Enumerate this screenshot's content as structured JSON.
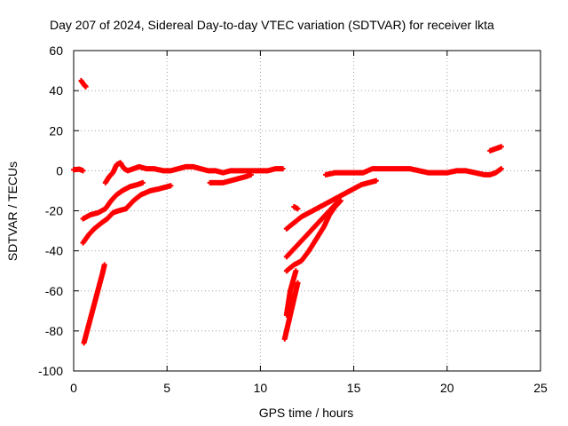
{
  "chart_data": {
    "type": "scatter",
    "title": "Day 207 of 2024, Sidereal Day-to-day VTEC variation (SDTVAR) for receiver lkta",
    "xlabel": "GPS time / hours",
    "ylabel": "SDTVAR / TECUs",
    "xlim": [
      0,
      25
    ],
    "ylim": [
      -100,
      60
    ],
    "xticks": [
      0,
      5,
      10,
      15,
      20,
      25
    ],
    "yticks": [
      -100,
      -80,
      -60,
      -40,
      -20,
      0,
      20,
      40,
      60
    ],
    "grid": true,
    "marker_color": "#ff0000",
    "series": [
      {
        "values": [
          [
            0.0,
            0.5
          ],
          [
            0.3,
            0.8
          ],
          [
            0.5,
            0.0
          ]
        ]
      },
      {
        "values": [
          [
            0.4,
            45
          ],
          [
            0.55,
            43
          ],
          [
            0.65,
            42
          ]
        ]
      },
      {
        "values": [
          [
            0.5,
            -24
          ],
          [
            0.9,
            -22
          ],
          [
            1.3,
            -21
          ],
          [
            1.7,
            -19
          ],
          [
            2.0,
            -15
          ],
          [
            2.3,
            -12
          ],
          [
            2.6,
            -10
          ],
          [
            3.0,
            -8
          ],
          [
            3.4,
            -7
          ],
          [
            3.7,
            -6
          ]
        ]
      },
      {
        "values": [
          [
            0.5,
            -36
          ],
          [
            0.8,
            -32
          ],
          [
            1.1,
            -29
          ],
          [
            1.5,
            -26
          ],
          [
            1.8,
            -24
          ],
          [
            2.1,
            -21
          ],
          [
            2.4,
            -20
          ],
          [
            2.8,
            -19
          ],
          [
            3.2,
            -15
          ],
          [
            3.6,
            -12
          ],
          [
            4.1,
            -10
          ],
          [
            4.6,
            -9
          ],
          [
            5.0,
            -8
          ],
          [
            5.2,
            -7.5
          ]
        ]
      },
      {
        "values": [
          [
            0.55,
            -86
          ],
          [
            0.75,
            -79
          ],
          [
            0.95,
            -72
          ],
          [
            1.15,
            -65
          ],
          [
            1.35,
            -58
          ],
          [
            1.55,
            -51
          ],
          [
            1.65,
            -47
          ]
        ]
      },
      {
        "values": [
          [
            1.7,
            -6
          ],
          [
            1.9,
            -3
          ],
          [
            2.1,
            -1
          ],
          [
            2.3,
            3
          ],
          [
            2.5,
            4
          ],
          [
            2.7,
            1
          ],
          [
            2.9,
            0
          ],
          [
            3.2,
            1
          ],
          [
            3.5,
            2
          ],
          [
            3.9,
            1
          ],
          [
            4.3,
            1
          ],
          [
            4.8,
            0
          ],
          [
            5.2,
            0
          ],
          [
            5.6,
            1
          ],
          [
            6.0,
            2
          ],
          [
            6.4,
            2
          ],
          [
            6.8,
            1
          ],
          [
            7.2,
            0
          ],
          [
            7.6,
            0
          ],
          [
            8.0,
            -1
          ],
          [
            8.4,
            0
          ],
          [
            8.8,
            0
          ],
          [
            9.2,
            0
          ],
          [
            9.6,
            0
          ],
          [
            10.0,
            0
          ],
          [
            10.4,
            0
          ],
          [
            10.8,
            1
          ],
          [
            11.2,
            1
          ]
        ]
      },
      {
        "values": [
          [
            7.3,
            -6
          ],
          [
            7.6,
            -6
          ],
          [
            8.0,
            -6
          ],
          [
            8.4,
            -5
          ],
          [
            8.8,
            -4
          ],
          [
            9.2,
            -3
          ],
          [
            9.5,
            -2
          ]
        ]
      },
      {
        "values": [
          [
            11.3,
            -84
          ],
          [
            11.45,
            -78
          ],
          [
            11.6,
            -72
          ],
          [
            11.75,
            -66
          ],
          [
            11.9,
            -60
          ],
          [
            12.0,
            -56
          ]
        ]
      },
      {
        "values": [
          [
            11.4,
            -72
          ],
          [
            11.5,
            -66
          ],
          [
            11.6,
            -60
          ],
          [
            11.75,
            -55
          ],
          [
            11.9,
            -50
          ]
        ]
      },
      {
        "values": [
          [
            11.4,
            -50
          ],
          [
            11.8,
            -47
          ],
          [
            12.2,
            -45
          ],
          [
            12.6,
            -40
          ],
          [
            13.0,
            -34
          ],
          [
            13.4,
            -28
          ],
          [
            13.7,
            -22
          ],
          [
            14.0,
            -18
          ],
          [
            14.3,
            -15
          ]
        ]
      },
      {
        "values": [
          [
            11.4,
            -43
          ],
          [
            11.8,
            -39
          ],
          [
            12.2,
            -35
          ],
          [
            12.6,
            -31
          ],
          [
            13.0,
            -27
          ],
          [
            13.4,
            -23
          ],
          [
            13.8,
            -19
          ],
          [
            14.1,
            -16
          ]
        ]
      },
      {
        "values": [
          [
            11.4,
            -29
          ],
          [
            11.8,
            -26
          ],
          [
            12.2,
            -23
          ],
          [
            12.6,
            -21
          ],
          [
            13.0,
            -19
          ],
          [
            13.4,
            -17
          ],
          [
            13.8,
            -15
          ],
          [
            14.2,
            -13
          ],
          [
            14.6,
            -11
          ],
          [
            15.0,
            -9
          ],
          [
            15.4,
            -7
          ],
          [
            15.8,
            -6
          ],
          [
            16.2,
            -5
          ]
        ]
      },
      {
        "values": [
          [
            11.8,
            -18
          ],
          [
            12.0,
            -19
          ]
        ]
      },
      {
        "values": [
          [
            13.5,
            -2
          ],
          [
            14.0,
            -1
          ],
          [
            14.5,
            -1
          ],
          [
            15.0,
            -1
          ],
          [
            15.5,
            -1
          ],
          [
            16.0,
            1
          ],
          [
            16.5,
            1
          ],
          [
            17.0,
            1
          ],
          [
            17.5,
            1
          ],
          [
            18.0,
            1
          ],
          [
            18.5,
            0
          ],
          [
            19.0,
            -1
          ],
          [
            19.5,
            -1
          ],
          [
            20.0,
            -1
          ],
          [
            20.5,
            0
          ],
          [
            21.0,
            0
          ],
          [
            21.5,
            -1
          ],
          [
            22.0,
            -2
          ],
          [
            22.3,
            -2
          ],
          [
            22.6,
            -1
          ],
          [
            22.9,
            1
          ]
        ]
      },
      {
        "values": [
          [
            22.3,
            10
          ],
          [
            22.6,
            11
          ],
          [
            22.9,
            12
          ]
        ]
      }
    ]
  }
}
